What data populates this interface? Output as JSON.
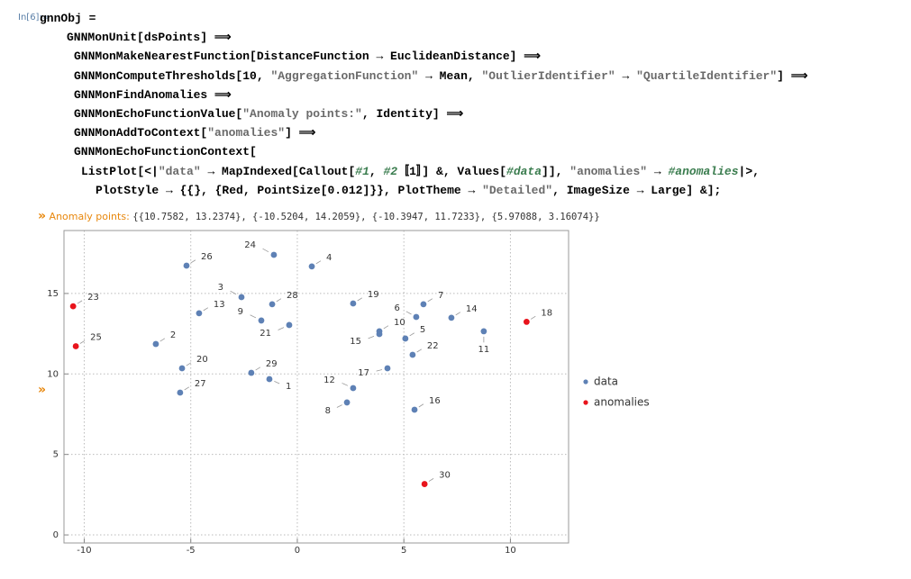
{
  "notebook": {
    "input_label": "In[6]:=",
    "code_lines": [
      [
        "gnnObj ="
      ],
      [
        "GNNMonUnit[dsPoints] ⟹"
      ],
      [
        "GNNMonMakeNearestFunction[DistanceFunction → EuclideanDistance] ⟹"
      ],
      [
        "GNNMonComputeThresholds[10, ",
        {
          "text": "\"AggregationFunction\"",
          "color": "#6a6a6a"
        },
        " → Mean, ",
        {
          "text": "\"OutlierIdentifier\"",
          "color": "#6a6a6a"
        },
        " → ",
        {
          "text": "\"QuartileIdentifier\"",
          "color": "#6a6a6a"
        },
        "] ⟹"
      ],
      [
        "GNNMonFindAnomalies ⟹"
      ],
      [
        "GNNMonEchoFunctionValue[",
        {
          "text": "\"Anomaly points:\"",
          "color": "#6a6a6a"
        },
        ", Identity] ⟹"
      ],
      [
        "GNNMonAddToContext[",
        {
          "text": "\"anomalies\"",
          "color": "#6a6a6a"
        },
        "] ⟹"
      ],
      [
        "GNNMonEchoFunctionContext["
      ],
      [
        "ListPlot[<|",
        {
          "text": "\"data\"",
          "color": "#6a6a6a"
        },
        " → MapIndexed[Callout[",
        {
          "text": "#1",
          "color": "#3b7d4f",
          "italic": true
        },
        ", ",
        {
          "text": "#2",
          "color": "#3b7d4f",
          "italic": true
        },
        "〚1〛] &, Values[",
        {
          "text": "#data",
          "color": "#3b7d4f",
          "italic": true
        },
        "]], ",
        {
          "text": "\"anomalies\"",
          "color": "#6a6a6a"
        },
        " → ",
        {
          "text": "#anomalies",
          "color": "#3b7d4f",
          "italic": true
        },
        "|>,"
      ],
      [
        "PlotStyle → {{}, {Red, PointSize[0.012]}}, PlotTheme → ",
        {
          "text": "\"Detailed\"",
          "color": "#6a6a6a"
        },
        ", ImageSize → Large] &];"
      ]
    ],
    "output_marker": "»",
    "echo_label": "Anomaly points:",
    "echo_value": "{{10.7582, 13.2374}, {-10.5204, 14.2059}, {-10.3947, 11.7233}, {5.97088, 3.16074}}",
    "plot_marker": "»"
  },
  "chart_data": {
    "type": "scatter",
    "xlim": [
      -10.95,
      12.73
    ],
    "ylim": [
      -0.5,
      18.91
    ],
    "xticks": [
      -10,
      -5,
      0,
      5,
      10
    ],
    "yticks": [
      0,
      5,
      10,
      15
    ],
    "grid": true,
    "legend": "right",
    "series": [
      {
        "name": "data",
        "color": "#5e81b5",
        "x": [
          -1.31,
          -6.64,
          -2.62,
          0.68,
          5.07,
          5.58,
          5.92,
          2.33,
          -1.69,
          3.85,
          8.75,
          2.62,
          -4.61,
          7.23,
          3.85,
          5.5,
          4.23,
          2.62,
          -5.41,
          -0.38,
          5.41,
          -1.1,
          -5.2,
          -5.5,
          -1.18,
          -2.16
        ],
        "values": [
          9.68,
          11.86,
          14.77,
          16.68,
          12.2,
          13.54,
          14.33,
          8.23,
          13.32,
          12.65,
          12.65,
          9.12,
          13.77,
          13.49,
          12.48,
          7.78,
          10.35,
          14.38,
          10.35,
          13.04,
          11.19,
          17.4,
          16.73,
          8.84,
          14.33,
          10.07
        ],
        "labels": [
          "1",
          "2",
          "3",
          "4",
          "5",
          "6",
          "7",
          "8",
          "9",
          "10",
          "11",
          "12",
          "13",
          "14",
          "15",
          "16",
          "17",
          "19",
          "20",
          "21",
          "22",
          "24",
          "26",
          "27",
          "28",
          "29"
        ]
      },
      {
        "name": "anomalies",
        "color": "#e8141c",
        "x": [
          10.7582,
          -10.5204,
          -10.3947,
          5.97088
        ],
        "values": [
          13.2374,
          14.2059,
          11.7233,
          3.16074
        ],
        "labels": [
          "18",
          "23",
          "25",
          "30"
        ]
      }
    ]
  }
}
